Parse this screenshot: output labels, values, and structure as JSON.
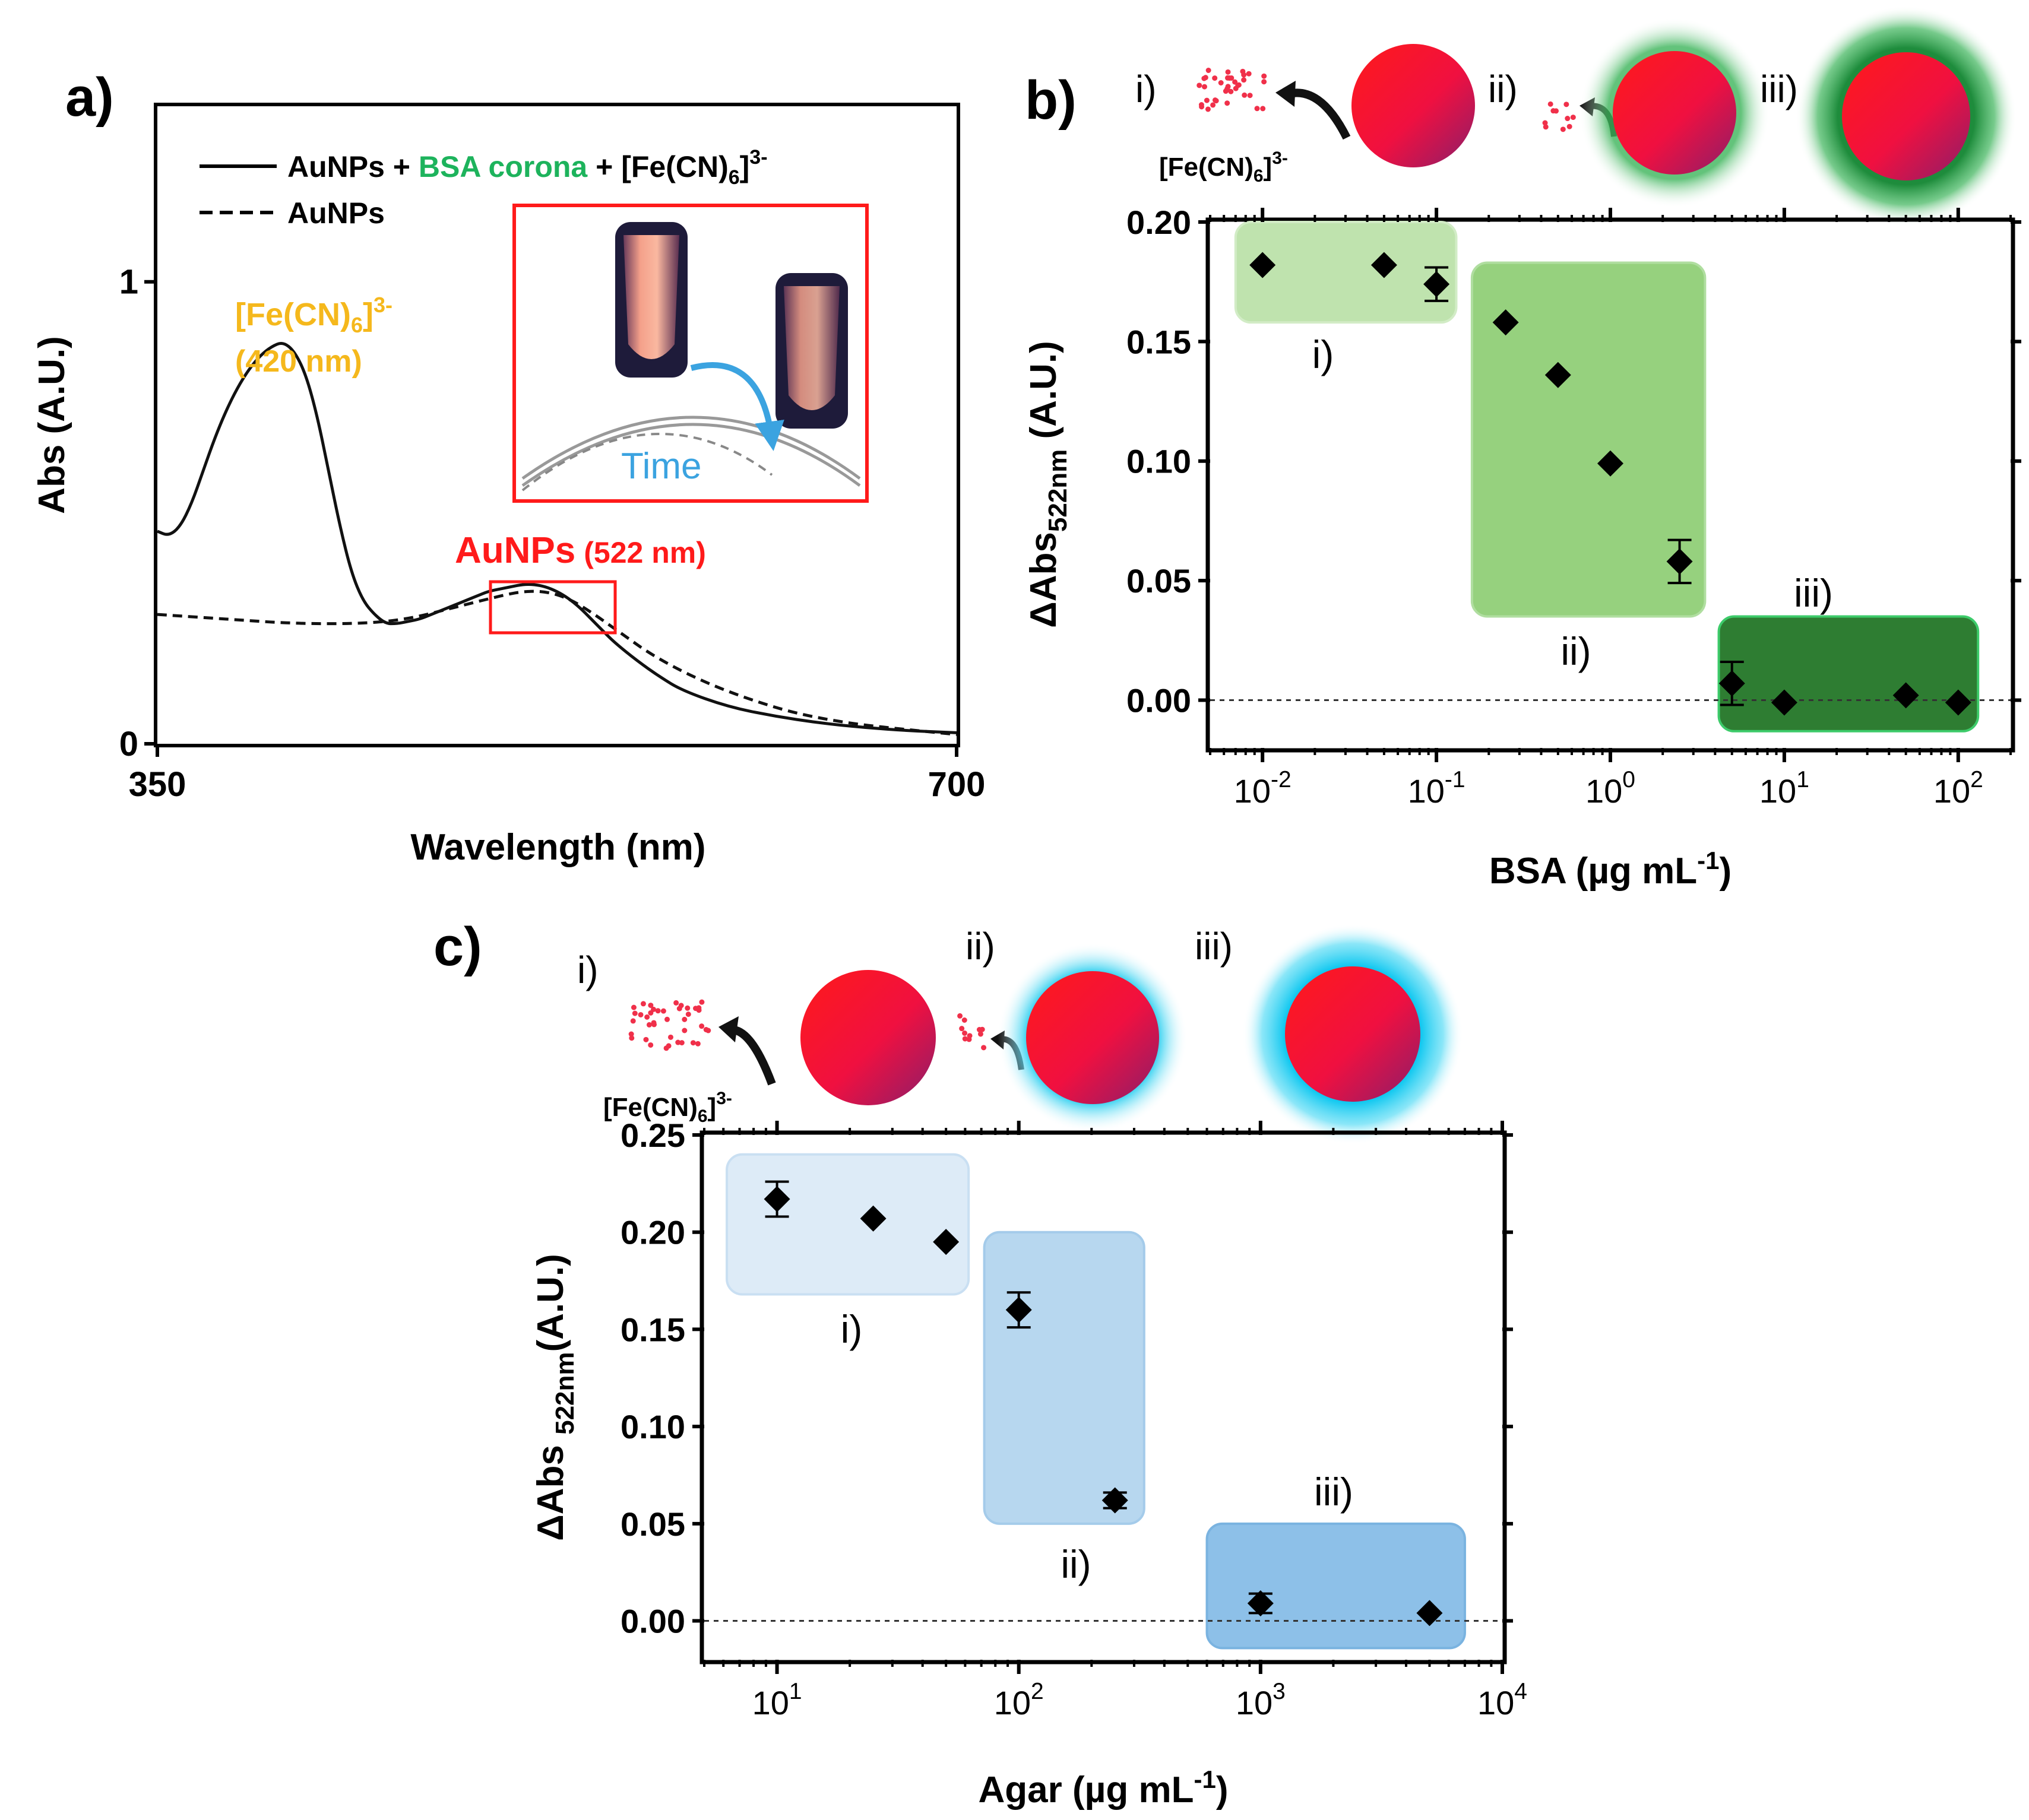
{
  "colors": {
    "gold": "#F5B81C",
    "green_text": "#1DB35C",
    "red": "#FF1A1A",
    "blue_time": "#3BA3E0",
    "bsa_box_light": "#BFE3AE",
    "bsa_box_mid": "#96D17E",
    "bsa_box_dark": "#2E7D32",
    "agar_box_light": "#DDEBF7",
    "agar_box_mid": "#B7D7EF",
    "agar_box_dark": "#8DC0E8"
  },
  "panel_a": {
    "label": "a)",
    "legend_solid_pre": "AuNPs + ",
    "legend_solid_green": "BSA corona",
    "legend_solid_post": " + [Fe(CN)",
    "legend_solid_sub": "6",
    "legend_solid_sup": "3-",
    "legend_dashed": "AuNPs",
    "fe_label": "[Fe(CN)",
    "fe_sub": "6",
    "fe_sup": "3-",
    "fe_nm": "(420 nm)",
    "aunp_label": "AuNPs",
    "aunp_nm": "(522 nm)",
    "inset_time": "Time",
    "chart_data": {
      "type": "line",
      "title": "",
      "xlabel": "Wavelength (nm)",
      "ylabel": "Abs (A.U.)",
      "xlim": [
        350,
        700
      ],
      "ylim": [
        0,
        1.38
      ],
      "xticks": [
        350,
        700
      ],
      "yticks": [
        0,
        1
      ],
      "series": [
        {
          "name": "AuNPs + BSA corona + [Fe(CN)6]3-",
          "style": "solid",
          "x": [
            350,
            355,
            360,
            365,
            370,
            375,
            380,
            385,
            390,
            395,
            400,
            405,
            410,
            415,
            420,
            425,
            430,
            435,
            440,
            445,
            450,
            455,
            460,
            465,
            470,
            475,
            480,
            485,
            490,
            495,
            500,
            505,
            510,
            515,
            520,
            525,
            530,
            535,
            540,
            545,
            550,
            560,
            570,
            580,
            600,
            620,
            640,
            660,
            680,
            700
          ],
          "y": [
            0.46,
            0.45,
            0.47,
            0.52,
            0.59,
            0.66,
            0.72,
            0.77,
            0.81,
            0.84,
            0.86,
            0.87,
            0.85,
            0.8,
            0.71,
            0.59,
            0.47,
            0.37,
            0.31,
            0.28,
            0.26,
            0.26,
            0.265,
            0.27,
            0.28,
            0.29,
            0.3,
            0.31,
            0.32,
            0.33,
            0.335,
            0.34,
            0.345,
            0.345,
            0.34,
            0.33,
            0.315,
            0.295,
            0.27,
            0.245,
            0.22,
            0.18,
            0.145,
            0.115,
            0.08,
            0.06,
            0.045,
            0.035,
            0.028,
            0.024
          ]
        },
        {
          "name": "AuNPs",
          "style": "dashed",
          "x": [
            350,
            380,
            410,
            440,
            460,
            480,
            500,
            510,
            520,
            530,
            540,
            550,
            570,
            600,
            640,
            700
          ],
          "y": [
            0.28,
            0.27,
            0.26,
            0.26,
            0.27,
            0.295,
            0.32,
            0.33,
            0.33,
            0.315,
            0.285,
            0.25,
            0.18,
            0.11,
            0.05,
            0.02
          ]
        }
      ]
    }
  },
  "panel_b": {
    "label": "b)",
    "schem_i": "i)",
    "schem_ii": "ii)",
    "schem_iii": "iii)",
    "fe_label": "[Fe(CN)",
    "fe_sub": "6",
    "fe_sup": "3-",
    "region_i": "i)",
    "region_ii": "ii)",
    "region_iii": "iii)",
    "chart_data": {
      "type": "scatter",
      "xscale": "log",
      "xlabel": "BSA (µg mL",
      "xlabel_sup": "-1",
      "xlabel_end": ")",
      "ylabel": "ΔAbs",
      "ylabel_sub": "522nm",
      "ylabel_end": " (A.U.)",
      "xlim": [
        0.005,
        200
      ],
      "ylim": [
        -0.02,
        0.2
      ],
      "yticks": [
        0.0,
        0.05,
        0.1,
        0.15,
        0.2
      ],
      "ytick_labels": [
        "0.00",
        "0.05",
        "0.10",
        "0.15",
        "0.20"
      ],
      "xtick_bases": [
        "10",
        "10",
        "10",
        "10",
        "10"
      ],
      "xtick_exps": [
        "-2",
        "-1",
        "0",
        "1",
        "2"
      ],
      "x": [
        0.01,
        0.05,
        0.1,
        0.25,
        0.5,
        1.0,
        2.5,
        5,
        10,
        50,
        100
      ],
      "y": [
        0.182,
        0.182,
        0.174,
        0.158,
        0.136,
        0.099,
        0.058,
        0.007,
        -0.001,
        0.002,
        -0.001
      ],
      "err": [
        0.0,
        0.0,
        0.007,
        0.0,
        0.0,
        0.0,
        0.009,
        0.009,
        0.0,
        0.0,
        0.0
      ],
      "regions": [
        {
          "name": "i)",
          "x": [
            0.007,
            0.13
          ],
          "y": [
            0.158,
            0.2
          ]
        },
        {
          "name": "ii)",
          "x": [
            0.16,
            3.5
          ],
          "y": [
            0.035,
            0.183
          ]
        },
        {
          "name": "iii)",
          "x": [
            4.2,
            130
          ],
          "y": [
            -0.013,
            0.035
          ]
        }
      ]
    }
  },
  "panel_c": {
    "label": "c)",
    "schem_i": "i)",
    "schem_ii": "ii)",
    "schem_iii": "iii)",
    "fe_label": "[Fe(CN)",
    "fe_sub": "6",
    "fe_sup": "3-",
    "region_i": "i)",
    "region_ii": "ii)",
    "region_iii": "iii)",
    "chart_data": {
      "type": "scatter",
      "xscale": "log",
      "xlabel": "Agar (µg mL",
      "xlabel_sup": "-1",
      "xlabel_end": ")",
      "ylabel": "ΔAbs ",
      "ylabel_sub": "522nm",
      "ylabel_end": "(A.U.)",
      "xlim": [
        5,
        10000
      ],
      "ylim": [
        -0.02,
        0.25
      ],
      "yticks": [
        0.0,
        0.05,
        0.1,
        0.15,
        0.2,
        0.25
      ],
      "ytick_labels": [
        "0.00",
        "0.05",
        "0.10",
        "0.15",
        "0.20",
        "0.25"
      ],
      "xtick_bases": [
        "10",
        "10",
        "10",
        "10"
      ],
      "xtick_exps": [
        "1",
        "2",
        "3",
        "4"
      ],
      "x": [
        10,
        25,
        50,
        100,
        250,
        1000,
        5000
      ],
      "y": [
        0.217,
        0.207,
        0.195,
        0.16,
        0.062,
        0.009,
        0.004
      ],
      "err": [
        0.009,
        0.0,
        0.0,
        0.009,
        0.004,
        0.005,
        0.0
      ],
      "regions": [
        {
          "name": "i)",
          "x": [
            6.2,
            62
          ],
          "y": [
            0.168,
            0.24
          ]
        },
        {
          "name": "ii)",
          "x": [
            72,
            330
          ],
          "y": [
            0.05,
            0.2
          ]
        },
        {
          "name": "iii)",
          "x": [
            600,
            7000
          ],
          "y": [
            -0.014,
            0.05
          ]
        }
      ]
    }
  }
}
